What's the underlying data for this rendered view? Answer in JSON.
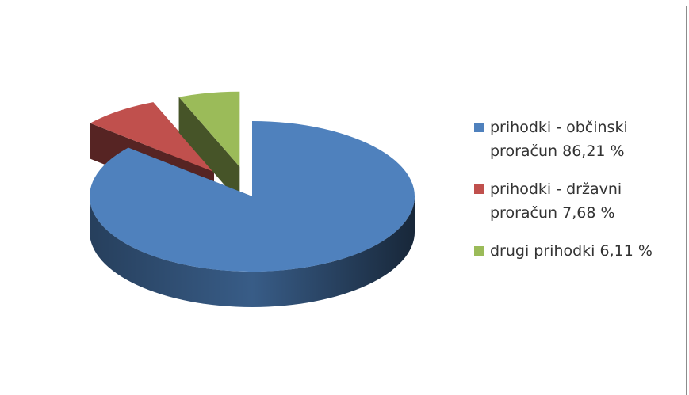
{
  "chart_data": {
    "type": "pie",
    "categories": [
      "prihodki - občinski proračun",
      "prihodki - državni proračun",
      "drugi prihodki"
    ],
    "values": [
      86.21,
      7.68,
      6.11
    ],
    "value_labels": [
      "86,21 %",
      "7,68 %",
      "6,11 %"
    ],
    "colors": [
      "#4f81bd",
      "#c0504d",
      "#9bbb59"
    ],
    "exploded": [
      false,
      true,
      true
    ],
    "legend": "right"
  }
}
